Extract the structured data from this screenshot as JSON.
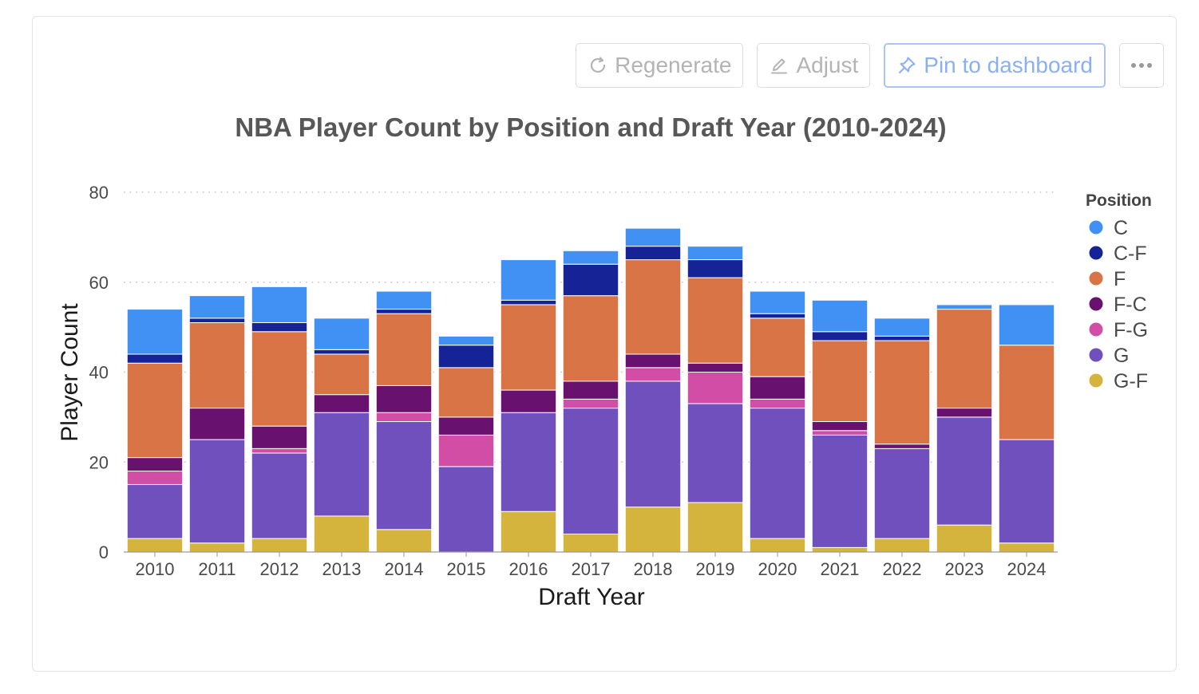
{
  "toolbar": {
    "regenerate_label": "Regenerate",
    "adjust_label": "Adjust",
    "pin_label": "Pin to dashboard",
    "more_icon": "ellipsis-icon",
    "regenerate_icon": "refresh-icon",
    "adjust_icon": "pencil-icon",
    "pin_icon": "pin-icon"
  },
  "chart_data": {
    "type": "bar",
    "stacked": true,
    "title": "NBA Player Count by Position and Draft Year (2010-2024)",
    "xlabel": "Draft Year",
    "ylabel": "Player Count",
    "ylim": [
      0,
      80
    ],
    "yticks": [
      0,
      20,
      40,
      60,
      80
    ],
    "grid": "horizontal dotted",
    "legend_title": "Position",
    "legend_position": "right",
    "categories": [
      "2010",
      "2011",
      "2012",
      "2013",
      "2014",
      "2015",
      "2016",
      "2017",
      "2018",
      "2019",
      "2020",
      "2021",
      "2022",
      "2023",
      "2024"
    ],
    "series": [
      {
        "name": "G-F",
        "color": "#d4b43c",
        "values": [
          3,
          2,
          3,
          8,
          5,
          0,
          9,
          4,
          10,
          11,
          3,
          1,
          3,
          6,
          2
        ]
      },
      {
        "name": "G",
        "color": "#6f50bc",
        "values": [
          12,
          23,
          19,
          23,
          24,
          19,
          22,
          28,
          28,
          22,
          29,
          25,
          20,
          24,
          23
        ]
      },
      {
        "name": "F-G",
        "color": "#d24ea6",
        "values": [
          3,
          0,
          1,
          0,
          2,
          7,
          0,
          2,
          3,
          7,
          2,
          1,
          0,
          0,
          0
        ]
      },
      {
        "name": "F-C",
        "color": "#68116f",
        "values": [
          3,
          7,
          5,
          4,
          6,
          4,
          5,
          4,
          3,
          2,
          5,
          2,
          1,
          2,
          0
        ]
      },
      {
        "name": "F",
        "color": "#d97446",
        "values": [
          21,
          19,
          21,
          9,
          16,
          11,
          19,
          19,
          21,
          19,
          13,
          18,
          23,
          22,
          21
        ]
      },
      {
        "name": "C-F",
        "color": "#162396",
        "values": [
          2,
          1,
          2,
          1,
          1,
          5,
          1,
          7,
          3,
          4,
          1,
          2,
          1,
          0,
          0
        ]
      },
      {
        "name": "C",
        "color": "#4191f4",
        "values": [
          10,
          5,
          8,
          7,
          4,
          2,
          9,
          3,
          4,
          3,
          5,
          7,
          4,
          1,
          9
        ]
      }
    ]
  }
}
